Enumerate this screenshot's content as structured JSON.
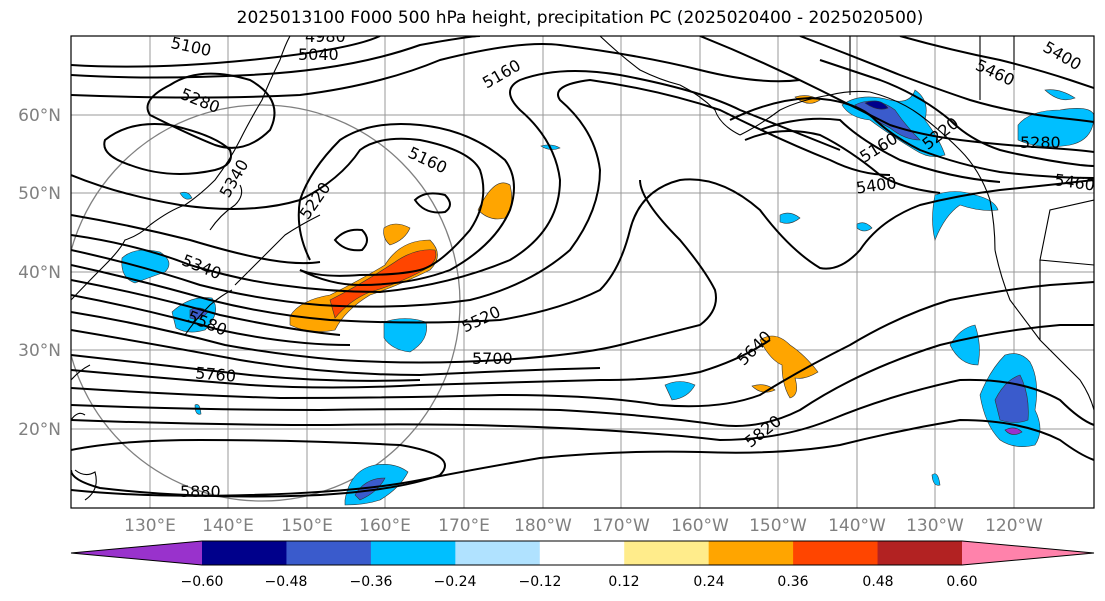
{
  "title": "2025013100 F000 500 hPa height, precipitation PC (2025020400 - 2025020500)",
  "lat_labels": [
    "60°N",
    "50°N",
    "40°N",
    "30°N",
    "20°N"
  ],
  "lon_labels": [
    "130°E",
    "140°E",
    "150°E",
    "160°E",
    "170°E",
    "180°W",
    "170°W",
    "160°W",
    "150°W",
    "140°W",
    "130°W",
    "120°W"
  ],
  "contour_labels": [
    "5100",
    "4980",
    "5040",
    "5160",
    "5280",
    "5340",
    "5220",
    "5160",
    "5340",
    "5580",
    "5520",
    "5700",
    "5760",
    "5880",
    "5640",
    "5820",
    "5160",
    "5220",
    "5280",
    "5400",
    "5460",
    "5460",
    "5400"
  ],
  "colorbar": {
    "ticks": [
      "−0.60",
      "−0.48",
      "−0.36",
      "−0.24",
      "−0.12",
      "0.12",
      "0.24",
      "0.36",
      "0.48",
      "0.60"
    ],
    "colors": [
      "#9932cc",
      "#00008b",
      "#3a5bcc",
      "#00bfff",
      "#b0e2ff",
      "#ffffff",
      "#ffec8b",
      "#ffa500",
      "#ff4500",
      "#b22222",
      "#ff82ab"
    ]
  },
  "colors": {
    "grid": "#999999",
    "axis_label": "#808080",
    "contour": "#000000",
    "coast": "#000000"
  }
}
